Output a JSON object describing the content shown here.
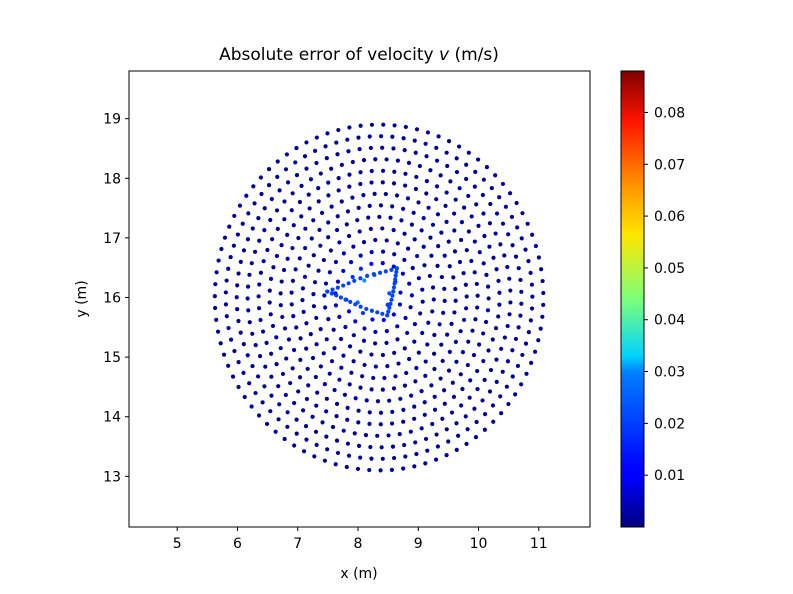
{
  "chart_data": {
    "type": "scatter",
    "title_main": "Absolute error of velocity ",
    "title_var": "v",
    "title_unit": " (m/s)",
    "xlabel": "x (m)",
    "ylabel": "y (m)",
    "xlim": [
      4.2,
      11.85
    ],
    "ylim": [
      12.15,
      19.8
    ],
    "xticks": [
      5,
      6,
      7,
      8,
      9,
      10,
      11
    ],
    "yticks": [
      13,
      14,
      15,
      16,
      17,
      18,
      19
    ],
    "colorbar": {
      "colormap": "jet",
      "min": 0.0,
      "max": 0.088,
      "ticks": [
        0.01,
        0.02,
        0.03,
        0.04,
        0.05,
        0.06,
        0.07,
        0.08
      ],
      "tick_labels": [
        "0.01",
        "0.02",
        "0.03",
        "0.04",
        "0.05",
        "0.06",
        "0.07",
        "0.08"
      ]
    },
    "grid": false,
    "point_cloud": {
      "shape": "disk with triangular hole",
      "center": [
        8.35,
        16.0
      ],
      "outer_radius": 2.9,
      "rings": 15,
      "hole_triangle": [
        [
          7.55,
          16.1
        ],
        [
          8.6,
          16.45
        ],
        [
          8.45,
          15.75
        ]
      ],
      "typical_error": 0.002,
      "max_error_near_hole": 0.027
    }
  }
}
